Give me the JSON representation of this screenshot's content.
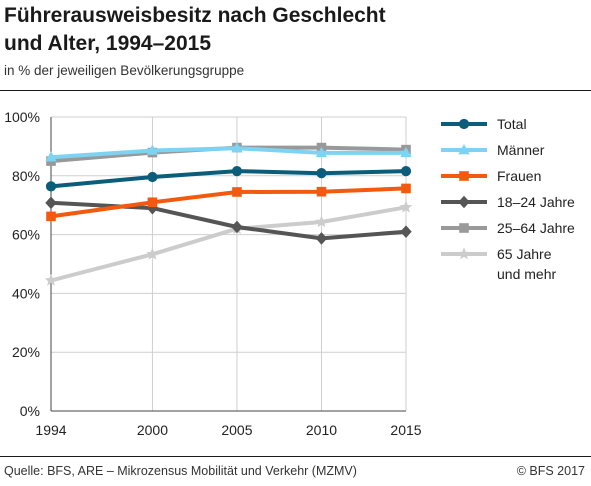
{
  "header": {
    "title_line1": "Führerausweisbesitz nach Geschlecht",
    "title_line2": "und Alter, 1994–2015",
    "subtitle": "in % der jeweiligen Bevölkerungsgruppe"
  },
  "footer": {
    "source": "Quelle: BFS, ARE – Mikrozensus Mobilität und Verkehr (MZMV)",
    "copyright": "© BFS 2017"
  },
  "chart_data": {
    "type": "line",
    "x": [
      1994,
      2000,
      2005,
      2010,
      2015
    ],
    "x_tick_labels": [
      "1994",
      "2000",
      "2005",
      "2010",
      "2015"
    ],
    "y_tick_values": [
      0,
      20,
      40,
      60,
      80,
      100
    ],
    "y_tick_labels": [
      "0%",
      "20%",
      "40%",
      "60%",
      "80%",
      "100%"
    ],
    "ylim": [
      0,
      100
    ],
    "grid": true,
    "legend_position": "right",
    "series": [
      {
        "name": "Total",
        "values": [
          76.4,
          79.6,
          81.6,
          80.9,
          81.6
        ],
        "color": "#0b5d79",
        "marker": "circle"
      },
      {
        "name": "Männer",
        "values": [
          86.3,
          88.6,
          89.4,
          87.8,
          87.8
        ],
        "color": "#7fd3f2",
        "marker": "triangle"
      },
      {
        "name": "Frauen",
        "values": [
          66.2,
          71.0,
          74.5,
          74.6,
          75.7
        ],
        "color": "#f15a0f",
        "marker": "square"
      },
      {
        "name": "18–24 Jahre",
        "values": [
          70.8,
          69.0,
          62.6,
          58.7,
          61.0
        ],
        "color": "#555555",
        "marker": "diamond"
      },
      {
        "name": "25–64 Jahre",
        "values": [
          85.0,
          87.9,
          89.6,
          89.6,
          88.9
        ],
        "color": "#999999",
        "marker": "square"
      },
      {
        "name": "65 Jahre und mehr",
        "legend_lines": [
          "65 Jahre",
          "und mehr"
        ],
        "values": [
          44.4,
          53.3,
          62.0,
          64.3,
          69.3
        ],
        "color": "#cccccc",
        "marker": "star"
      }
    ]
  }
}
